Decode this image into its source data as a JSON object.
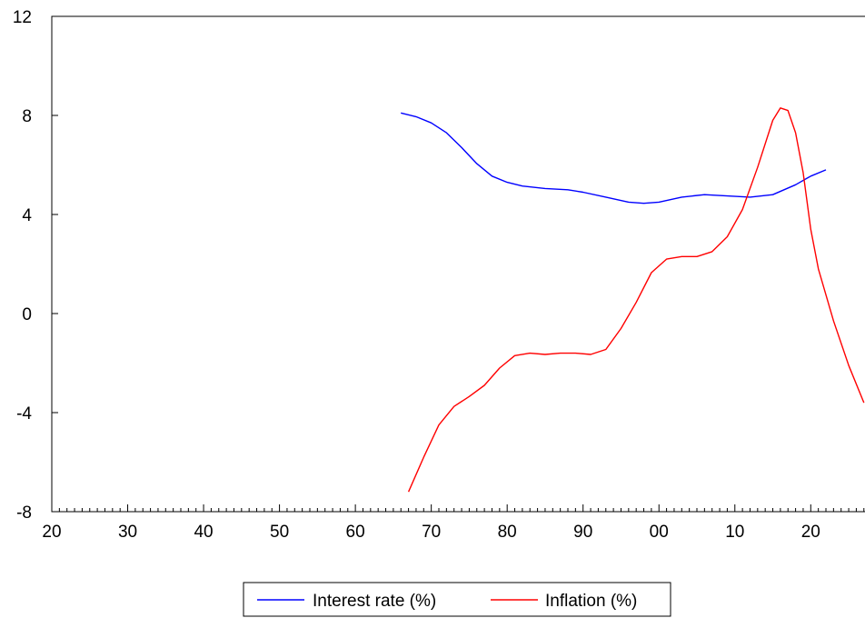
{
  "chart_data": {
    "type": "line",
    "title": "",
    "xlabel": "",
    "ylabel": "",
    "xlim": [
      1920,
      2027
    ],
    "ylim": [
      -8,
      12
    ],
    "grid": false,
    "legend_position": "bottom-center",
    "x_ticks": [
      {
        "value": 1920,
        "label": "20"
      },
      {
        "value": 1930,
        "label": "30"
      },
      {
        "value": 1940,
        "label": "40"
      },
      {
        "value": 1950,
        "label": "50"
      },
      {
        "value": 1960,
        "label": "60"
      },
      {
        "value": 1970,
        "label": "70"
      },
      {
        "value": 1980,
        "label": "80"
      },
      {
        "value": 1990,
        "label": "90"
      },
      {
        "value": 2000,
        "label": "00"
      },
      {
        "value": 2010,
        "label": "10"
      },
      {
        "value": 2020,
        "label": "20"
      }
    ],
    "y_ticks": [
      {
        "value": -8,
        "label": "-8"
      },
      {
        "value": -4,
        "label": "-4"
      },
      {
        "value": 0,
        "label": "0"
      },
      {
        "value": 4,
        "label": "4"
      },
      {
        "value": 8,
        "label": "8"
      },
      {
        "value": 12,
        "label": "12"
      }
    ],
    "series": [
      {
        "name": "Interest rate (%)",
        "color": "#0000ff",
        "x": [
          1966,
          1968,
          1970,
          1972,
          1974,
          1976,
          1978,
          1980,
          1982,
          1985,
          1988,
          1990,
          1993,
          1996,
          1998,
          2000,
          2003,
          2006,
          2009,
          2012,
          2015,
          2018,
          2020,
          2022
        ],
        "y": [
          8.1,
          7.95,
          7.7,
          7.3,
          6.7,
          6.05,
          5.55,
          5.3,
          5.15,
          5.05,
          5.0,
          4.9,
          4.7,
          4.5,
          4.45,
          4.5,
          4.7,
          4.8,
          4.75,
          4.7,
          4.8,
          5.2,
          5.55,
          5.8
        ]
      },
      {
        "name": "Inflation (%)",
        "color": "#ff0000",
        "x": [
          1967,
          1969,
          1971,
          1973,
          1975,
          1977,
          1979,
          1981,
          1983,
          1985,
          1987,
          1989,
          1991,
          1993,
          1995,
          1997,
          1999,
          2001,
          2003,
          2005,
          2007,
          2009,
          2011,
          2013,
          2015,
          2016,
          2017,
          2018,
          2019,
          2020,
          2021,
          2023,
          2025,
          2027
        ],
        "y": [
          -7.2,
          -5.8,
          -4.5,
          -3.75,
          -3.35,
          -2.9,
          -2.2,
          -1.7,
          -1.6,
          -1.65,
          -1.6,
          -1.6,
          -1.65,
          -1.45,
          -0.6,
          0.45,
          1.65,
          2.2,
          2.3,
          2.3,
          2.5,
          3.1,
          4.2,
          5.9,
          7.8,
          8.3,
          8.2,
          7.3,
          5.7,
          3.4,
          1.8,
          -0.3,
          -2.1,
          -3.6
        ]
      }
    ]
  }
}
